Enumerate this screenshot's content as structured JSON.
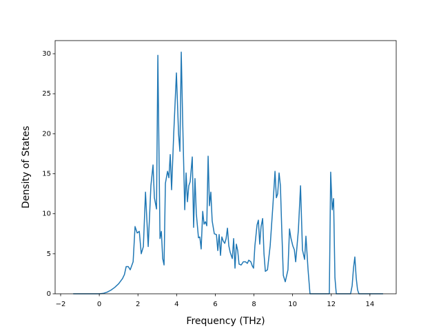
{
  "chart_data": {
    "type": "line",
    "x_label": "Frequency (THz)",
    "y_label": "Density of States",
    "xlim": [
      -2.285,
      15.36
    ],
    "ylim": [
      0,
      31.64
    ],
    "xticks": [
      {
        "value": -2,
        "label": "−2"
      },
      0,
      2,
      4,
      6,
      8,
      10,
      12,
      14
    ],
    "yticks": [
      0,
      5,
      10,
      15,
      20,
      25,
      30
    ],
    "x": [
      -1.35,
      0,
      0.2,
      0.4,
      0.6,
      0.8,
      1.0,
      1.2,
      1.3,
      1.39,
      1.5,
      1.6,
      1.75,
      1.85,
      1.96,
      2.07,
      2.17,
      2.28,
      2.39,
      2.53,
      2.67,
      2.78,
      2.85,
      2.96,
      3.03,
      3.14,
      3.21,
      3.28,
      3.35,
      3.42,
      3.53,
      3.6,
      3.67,
      3.74,
      3.85,
      3.99,
      4.1,
      4.17,
      4.24,
      4.31,
      4.42,
      4.49,
      4.56,
      4.63,
      4.7,
      4.81,
      4.88,
      4.95,
      5.02,
      5.13,
      5.2,
      5.27,
      5.35,
      5.42,
      5.49,
      5.56,
      5.63,
      5.7,
      5.77,
      5.84,
      5.95,
      6.06,
      6.13,
      6.2,
      6.27,
      6.34,
      6.41,
      6.49,
      6.56,
      6.63,
      6.7,
      6.77,
      6.88,
      6.95,
      7.02,
      7.09,
      7.16,
      7.23,
      7.34,
      7.45,
      7.56,
      7.66,
      7.73,
      7.84,
      7.91,
      7.98,
      8.05,
      8.16,
      8.23,
      8.3,
      8.37,
      8.45,
      8.52,
      8.59,
      8.7,
      8.84,
      8.98,
      9.09,
      9.16,
      9.23,
      9.3,
      9.37,
      9.44,
      9.52,
      9.62,
      9.76,
      9.84,
      9.91,
      10.01,
      10.09,
      10.16,
      10.23,
      10.3,
      10.41,
      10.51,
      10.62,
      10.69,
      10.8,
      10.9,
      11.9,
      11.97,
      12.05,
      12.12,
      12.19,
      12.26,
      13.0,
      13.08,
      13.15,
      13.22,
      13.29,
      13.36,
      13.43,
      14.68
    ],
    "series": [
      {
        "color": "#1f77b4",
        "values": [
          0,
          0,
          0.05,
          0.2,
          0.45,
          0.8,
          1.25,
          1.9,
          2.4,
          3.4,
          3.4,
          3.0,
          4.0,
          8.4,
          7.6,
          7.8,
          5.0,
          5.9,
          12.7,
          5.9,
          13.5,
          16.1,
          12.0,
          10.6,
          29.8,
          6.9,
          7.8,
          4.4,
          3.6,
          13.8,
          15.3,
          14.5,
          17.4,
          13.0,
          20.0,
          27.6,
          20.0,
          17.8,
          30.2,
          22.0,
          10.5,
          15.1,
          11.5,
          13.5,
          14.0,
          17.1,
          8.3,
          14.4,
          10.0,
          7.0,
          7.1,
          5.6,
          10.3,
          8.7,
          9.0,
          8.5,
          17.2,
          11.0,
          12.7,
          9.1,
          7.5,
          7.4,
          5.4,
          7.4,
          4.8,
          7.1,
          6.6,
          6.3,
          6.9,
          8.2,
          6.0,
          5.2,
          4.4,
          6.9,
          3.2,
          6.2,
          5.4,
          3.7,
          3.6,
          4.0,
          4.0,
          3.8,
          4.2,
          4.0,
          3.5,
          3.2,
          6.0,
          8.6,
          9.2,
          6.2,
          8.4,
          9.4,
          5.0,
          2.8,
          3.0,
          6.0,
          11.0,
          15.3,
          12.0,
          12.5,
          15.1,
          13.5,
          8.0,
          2.3,
          1.5,
          3.0,
          8.1,
          7.0,
          6.0,
          5.5,
          4.0,
          6.0,
          8.0,
          13.5,
          5.5,
          4.3,
          7.2,
          3.0,
          0,
          0,
          15.2,
          10.5,
          11.9,
          2.0,
          0,
          0,
          1.0,
          3.2,
          4.6,
          2.0,
          0.5,
          0,
          0
        ]
      }
    ]
  }
}
